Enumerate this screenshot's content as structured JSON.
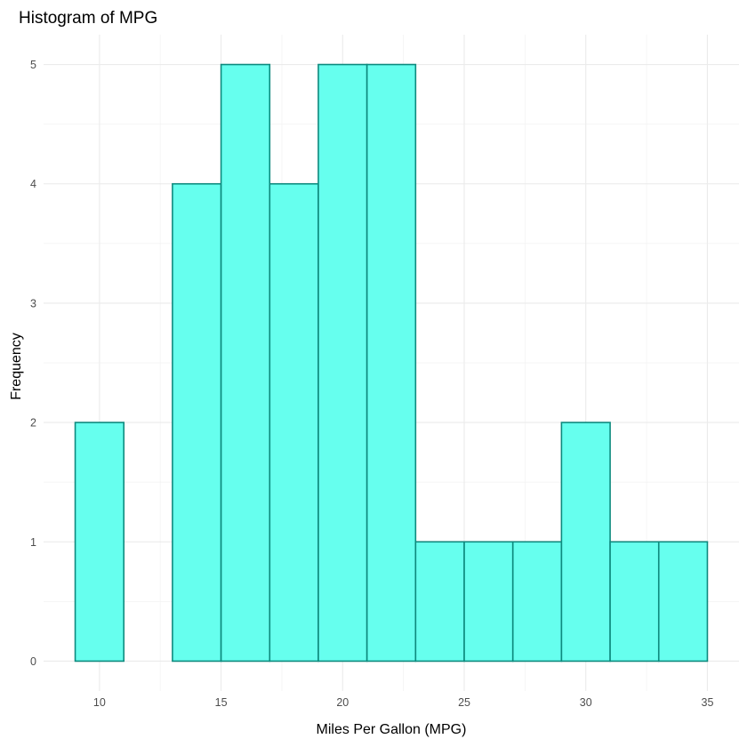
{
  "chart_data": {
    "type": "bar",
    "title": "Histogram of MPG",
    "xlabel": "Miles Per Gallon (MPG)",
    "ylabel": "Frequency",
    "bins": [
      {
        "start": 9,
        "end": 11,
        "count": 2
      },
      {
        "start": 11,
        "end": 13,
        "count": 0
      },
      {
        "start": 13,
        "end": 15,
        "count": 4
      },
      {
        "start": 15,
        "end": 17,
        "count": 5
      },
      {
        "start": 17,
        "end": 19,
        "count": 4
      },
      {
        "start": 19,
        "end": 21,
        "count": 5
      },
      {
        "start": 21,
        "end": 23,
        "count": 5
      },
      {
        "start": 23,
        "end": 25,
        "count": 1
      },
      {
        "start": 25,
        "end": 27,
        "count": 1
      },
      {
        "start": 27,
        "end": 29,
        "count": 1
      },
      {
        "start": 29,
        "end": 31,
        "count": 2
      },
      {
        "start": 31,
        "end": 33,
        "count": 1
      },
      {
        "start": 33,
        "end": 35,
        "count": 1
      }
    ],
    "x_ticks": [
      10,
      15,
      20,
      25,
      30,
      35
    ],
    "y_ticks": [
      0,
      1,
      2,
      3,
      4,
      5
    ],
    "xlim": [
      7.7,
      36.3
    ],
    "ylim": [
      -0.25,
      5.25
    ],
    "grid": true,
    "bar_fill": "#66FFEE",
    "bar_stroke": "#0E8A7E"
  }
}
